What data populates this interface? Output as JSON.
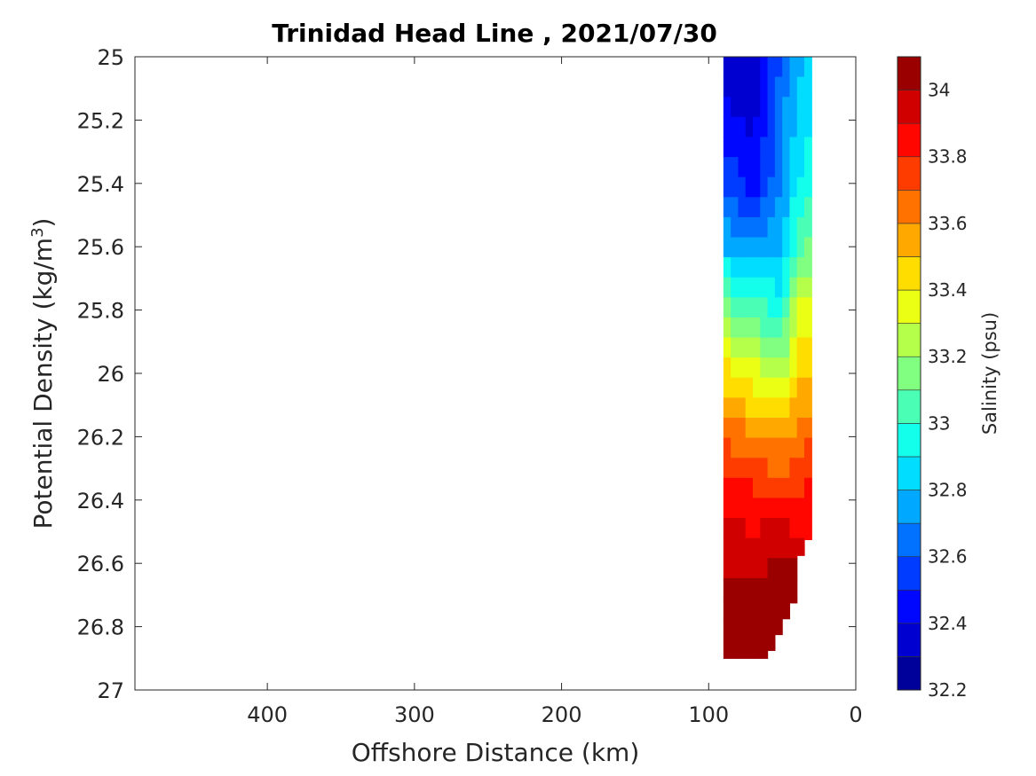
{
  "chart_data": {
    "type": "contour",
    "title": "Trinidad Head Line , 2021/07/30",
    "xlabel": "Offshore Distance (km)",
    "ylabel_main": "Potential Density (kg/m",
    "ylabel_sup": "3",
    "ylabel_close": ")",
    "xlim": [
      490,
      0
    ],
    "x_reversed": true,
    "ylim": [
      25,
      27
    ],
    "y_reversed": true,
    "x_ticks": [
      400,
      300,
      200,
      100,
      0
    ],
    "y_ticks": [
      25,
      25.2,
      25.4,
      25.6,
      25.8,
      26,
      26.2,
      26.4,
      26.6,
      26.8,
      27
    ],
    "y_tick_labels": [
      "25",
      "25.2",
      "25.4",
      "25.6",
      "25.8",
      "26",
      "26.2",
      "26.4",
      "26.6",
      "26.8",
      "27"
    ],
    "colorbar": {
      "label": "Salinity (psu)",
      "range": [
        32.2,
        34.1
      ],
      "step": 0.1,
      "ticks": [
        32.2,
        32.4,
        32.6,
        32.8,
        33,
        33.2,
        33.4,
        33.6,
        33.8,
        34
      ],
      "tick_labels": [
        "32.2",
        "32.4",
        "32.6",
        "32.8",
        "33",
        "33.2",
        "33.4",
        "33.6",
        "33.8",
        "34"
      ],
      "colormap": "jet"
    },
    "grid": false,
    "station_distances_km": [
      90,
      70,
      50,
      40,
      30
    ],
    "density_levels": [
      25.0,
      25.2,
      25.4,
      25.6,
      25.8,
      26.0,
      26.2,
      26.4,
      26.6,
      26.8,
      26.9
    ],
    "salinity": [
      [
        32.35,
        32.3,
        32.6,
        32.75,
        32.9
      ],
      [
        32.45,
        32.35,
        32.7,
        32.8,
        32.9
      ],
      [
        32.6,
        32.45,
        32.7,
        32.9,
        33.0
      ],
      [
        32.8,
        32.7,
        32.8,
        33.05,
        33.15
      ],
      [
        33.15,
        33.05,
        32.95,
        33.3,
        33.35
      ],
      [
        33.45,
        33.35,
        33.25,
        33.45,
        33.5
      ],
      [
        33.7,
        33.6,
        33.55,
        33.65,
        33.7
      ],
      [
        33.85,
        33.85,
        33.8,
        33.8,
        33.85
      ],
      [
        34.0,
        33.95,
        34.05,
        34.0,
        null
      ],
      [
        34.05,
        34.1,
        34.05,
        null,
        null
      ],
      [
        34.1,
        34.15,
        34.1,
        null,
        null
      ]
    ],
    "max_density_km": [
      [
        90,
        26.9
      ],
      [
        60,
        26.9
      ],
      [
        50,
        26.8
      ],
      [
        40,
        26.7
      ],
      [
        40,
        26.6
      ],
      [
        30,
        26.5
      ]
    ]
  }
}
